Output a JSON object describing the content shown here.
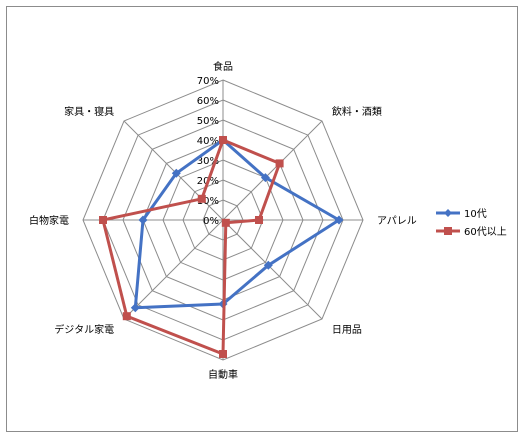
{
  "chart_data": {
    "type": "radar",
    "title": "",
    "categories": [
      "食品",
      "飲料・酒類",
      "アパレル",
      "日用品",
      "自動車",
      "デジタル家電",
      "白物家電",
      "家具・寝具"
    ],
    "ticks": [
      "0%",
      "10%",
      "20%",
      "30%",
      "40%",
      "50%",
      "60%",
      "70%"
    ],
    "rmax": 70,
    "grid": true,
    "legend_position": "right",
    "series": [
      {
        "name": "10代",
        "values": [
          40,
          30,
          58,
          32,
          42,
          62,
          40,
          33
        ],
        "color": "#4472c4"
      },
      {
        "name": "60代以上",
        "values": [
          40,
          40,
          18,
          2,
          67,
          68,
          60,
          15
        ],
        "color": "#c0504d"
      }
    ]
  }
}
